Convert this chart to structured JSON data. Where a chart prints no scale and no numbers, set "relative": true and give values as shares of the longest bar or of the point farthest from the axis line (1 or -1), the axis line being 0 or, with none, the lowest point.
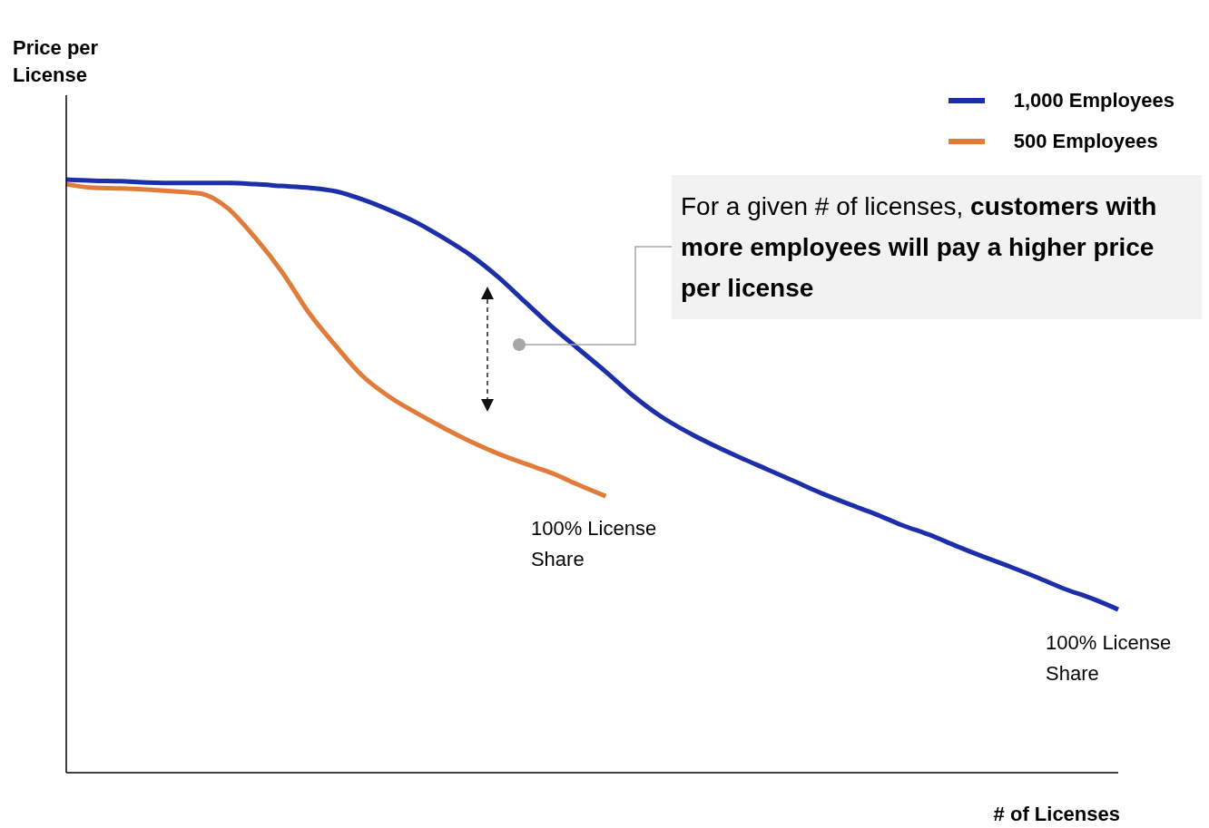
{
  "chart_data": {
    "type": "line",
    "relative": true,
    "xlabel": "# of Licenses",
    "ylabel": "Price per License",
    "legend": "top right",
    "grid": false,
    "marker": "none",
    "line_style": "solid",
    "categories": [
      null,
      null,
      null,
      null,
      null,
      null,
      null,
      null,
      null,
      null,
      null,
      null,
      null,
      null,
      null,
      null,
      null,
      null,
      null,
      null,
      null,
      null,
      null,
      null,
      null,
      null,
      null,
      null,
      null,
      null,
      null,
      null,
      null,
      null,
      null,
      null,
      null,
      null,
      null,
      null
    ],
    "series": [
      {
        "name": "1,000 Employees",
        "color": "#1c2fa8",
        "values": [
          1,
          0.998,
          0.997,
          0.995,
          0.994,
          0.994,
          0.994,
          0.992,
          0.989,
          0.986,
          0.98,
          0.966,
          0.948,
          0.927,
          0.901,
          0.872,
          0.836,
          0.794,
          0.752,
          0.714,
          0.676,
          0.636,
          0.602,
          0.575,
          0.552,
          0.531,
          0.511,
          0.491,
          0.471,
          0.453,
          0.436,
          0.417,
          0.401,
          0.382,
          0.364,
          0.347,
          0.329,
          0.31,
          0.294,
          0.275
        ]
      },
      {
        "name": "500 Employees",
        "color": "#e07b39",
        "values": [
          0.992,
          0.986,
          0.985,
          0.983,
          0.98,
          0.976,
          0.951,
          0.902,
          0.844,
          0.775,
          0.719,
          0.668,
          0.633,
          0.606,
          0.581,
          0.558,
          0.538,
          0.521,
          0.505,
          0.485,
          0.466,
          null,
          null,
          null,
          null,
          null,
          null,
          null,
          null,
          null,
          null,
          null,
          null,
          null,
          null,
          null,
          null,
          null,
          null,
          null
        ]
      }
    ],
    "annotations": [
      "For a given # of licenses, customers with more employees will pay a higher price per license",
      "100% License Share",
      "100% License Share"
    ]
  }
}
